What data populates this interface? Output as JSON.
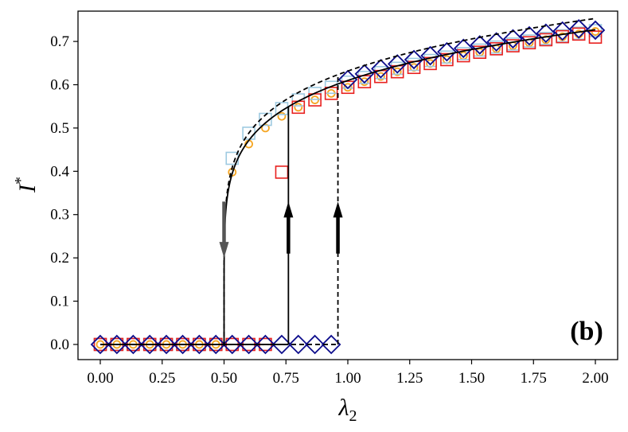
{
  "chart_data": {
    "type": "scatter",
    "title": "",
    "panel_label": "(b)",
    "xlabel_main": "λ",
    "xlabel_sub": "2",
    "ylabel_main": "I",
    "ylabel_sup": "*",
    "xlim": [
      -0.09,
      2.09
    ],
    "ylim": [
      -0.035,
      0.77
    ],
    "x_ticks": [
      0.0,
      0.25,
      0.5,
      0.75,
      1.0,
      1.25,
      1.5,
      1.75,
      2.0
    ],
    "x_tick_labels": [
      "0.00",
      "0.25",
      "0.50",
      "0.75",
      "1.00",
      "1.25",
      "1.50",
      "1.75",
      "2.00"
    ],
    "y_ticks": [
      0.0,
      0.1,
      0.2,
      0.3,
      0.4,
      0.5,
      0.6,
      0.7
    ],
    "y_tick_labels": [
      "0.0",
      "0.1",
      "0.2",
      "0.3",
      "0.4",
      "0.5",
      "0.6",
      "0.7"
    ],
    "grid": false,
    "lines": [
      {
        "style": "solid",
        "color": "#000000",
        "kind": "stable-branch",
        "lower_x_end": 0.76,
        "vertical_x": 0.5,
        "upper_x_start": 0.5,
        "upper_x_end": 2.0,
        "y_at_2": 0.727
      },
      {
        "style": "dashed",
        "color": "#000000",
        "kind": "upper-bound",
        "lower_x_end": 0.96,
        "vertical_x": 0.5,
        "upper_x_start": 0.5,
        "upper_x_end": 2.0,
        "y_at_2": 0.753
      }
    ],
    "arrows": [
      {
        "x": 0.5,
        "direction": "down",
        "color": "#555555",
        "tail_y": 0.33,
        "head_y": 0.2
      },
      {
        "x": 0.76,
        "direction": "up",
        "color": "#000000",
        "tail_y": 0.21,
        "head_y": 0.33
      },
      {
        "x": 0.96,
        "direction": "up",
        "color": "#000000",
        "tail_y": 0.21,
        "head_y": 0.33
      }
    ],
    "series": [
      {
        "marker": "circle",
        "color": "#f5a623",
        "x": [
          0.0,
          0.067,
          0.133,
          0.2,
          0.267,
          0.333,
          0.4,
          0.467,
          0.533,
          0.6,
          0.667,
          0.733,
          0.8,
          0.867,
          0.933,
          1.0,
          1.067,
          1.133,
          1.2,
          1.267,
          1.333,
          1.4,
          1.467,
          1.533,
          1.6,
          1.667,
          1.733,
          1.8,
          1.867,
          1.933,
          2.0
        ],
        "y": [
          0,
          0,
          0,
          0,
          0,
          0,
          0,
          0,
          0.398,
          0.463,
          0.5,
          0.527,
          0.548,
          0.565,
          0.58,
          0.594,
          0.607,
          0.619,
          0.63,
          0.64,
          0.649,
          0.658,
          0.667,
          0.675,
          0.683,
          0.69,
          0.697,
          0.704,
          0.711,
          0.717,
          0.723
        ]
      },
      {
        "marker": "square",
        "color": "#9ecae1",
        "x": [
          0.0,
          0.067,
          0.133,
          0.2,
          0.267,
          0.333,
          0.4,
          0.467,
          0.533,
          0.6,
          0.667,
          0.733,
          0.8,
          0.867,
          0.933,
          1.0,
          1.067,
          1.133,
          1.2,
          1.267,
          1.333,
          1.4,
          1.467,
          1.533,
          1.6,
          1.667,
          1.733,
          1.8,
          1.867,
          1.933,
          2.0
        ],
        "y": [
          0,
          0,
          0,
          0,
          0,
          0,
          0,
          0,
          0.43,
          0.488,
          0.52,
          0.545,
          0.565,
          0.58,
          0.594,
          0.606,
          0.617,
          0.628,
          0.638,
          0.647,
          0.656,
          0.664,
          0.672,
          0.68,
          0.687,
          0.694,
          0.701,
          0.707,
          0.713,
          0.719,
          0.725
        ]
      },
      {
        "marker": "square",
        "color": "#e8201e",
        "x": [
          0.0,
          0.067,
          0.133,
          0.2,
          0.267,
          0.333,
          0.4,
          0.467,
          0.533,
          0.6,
          0.667,
          0.733,
          0.8,
          0.867,
          0.933,
          1.0,
          1.067,
          1.133,
          1.2,
          1.267,
          1.333,
          1.4,
          1.467,
          1.533,
          1.6,
          1.667,
          1.733,
          1.8,
          1.867,
          1.933,
          2.0
        ],
        "y": [
          0,
          0,
          0,
          0,
          0,
          0,
          0,
          0,
          0,
          0,
          0,
          0.398,
          0.548,
          0.565,
          0.58,
          0.594,
          0.607,
          0.619,
          0.63,
          0.64,
          0.649,
          0.658,
          0.667,
          0.675,
          0.683,
          0.69,
          0.697,
          0.704,
          0.711,
          0.717,
          0.71
        ]
      },
      {
        "marker": "diamond",
        "color": "#0d0d8c",
        "x": [
          0.0,
          0.067,
          0.133,
          0.2,
          0.267,
          0.333,
          0.4,
          0.467,
          0.533,
          0.6,
          0.667,
          0.733,
          0.8,
          0.867,
          0.933,
          1.0,
          1.067,
          1.133,
          1.2,
          1.267,
          1.333,
          1.4,
          1.467,
          1.533,
          1.6,
          1.667,
          1.733,
          1.8,
          1.867,
          1.933,
          2.0
        ],
        "y": [
          0,
          0,
          0,
          0,
          0,
          0,
          0,
          0,
          0,
          0,
          0,
          0,
          0,
          0,
          0,
          0.612,
          0.625,
          0.637,
          0.648,
          0.658,
          0.667,
          0.676,
          0.684,
          0.692,
          0.699,
          0.706,
          0.713,
          0.719,
          0.724,
          0.729,
          0.726
        ]
      }
    ]
  }
}
